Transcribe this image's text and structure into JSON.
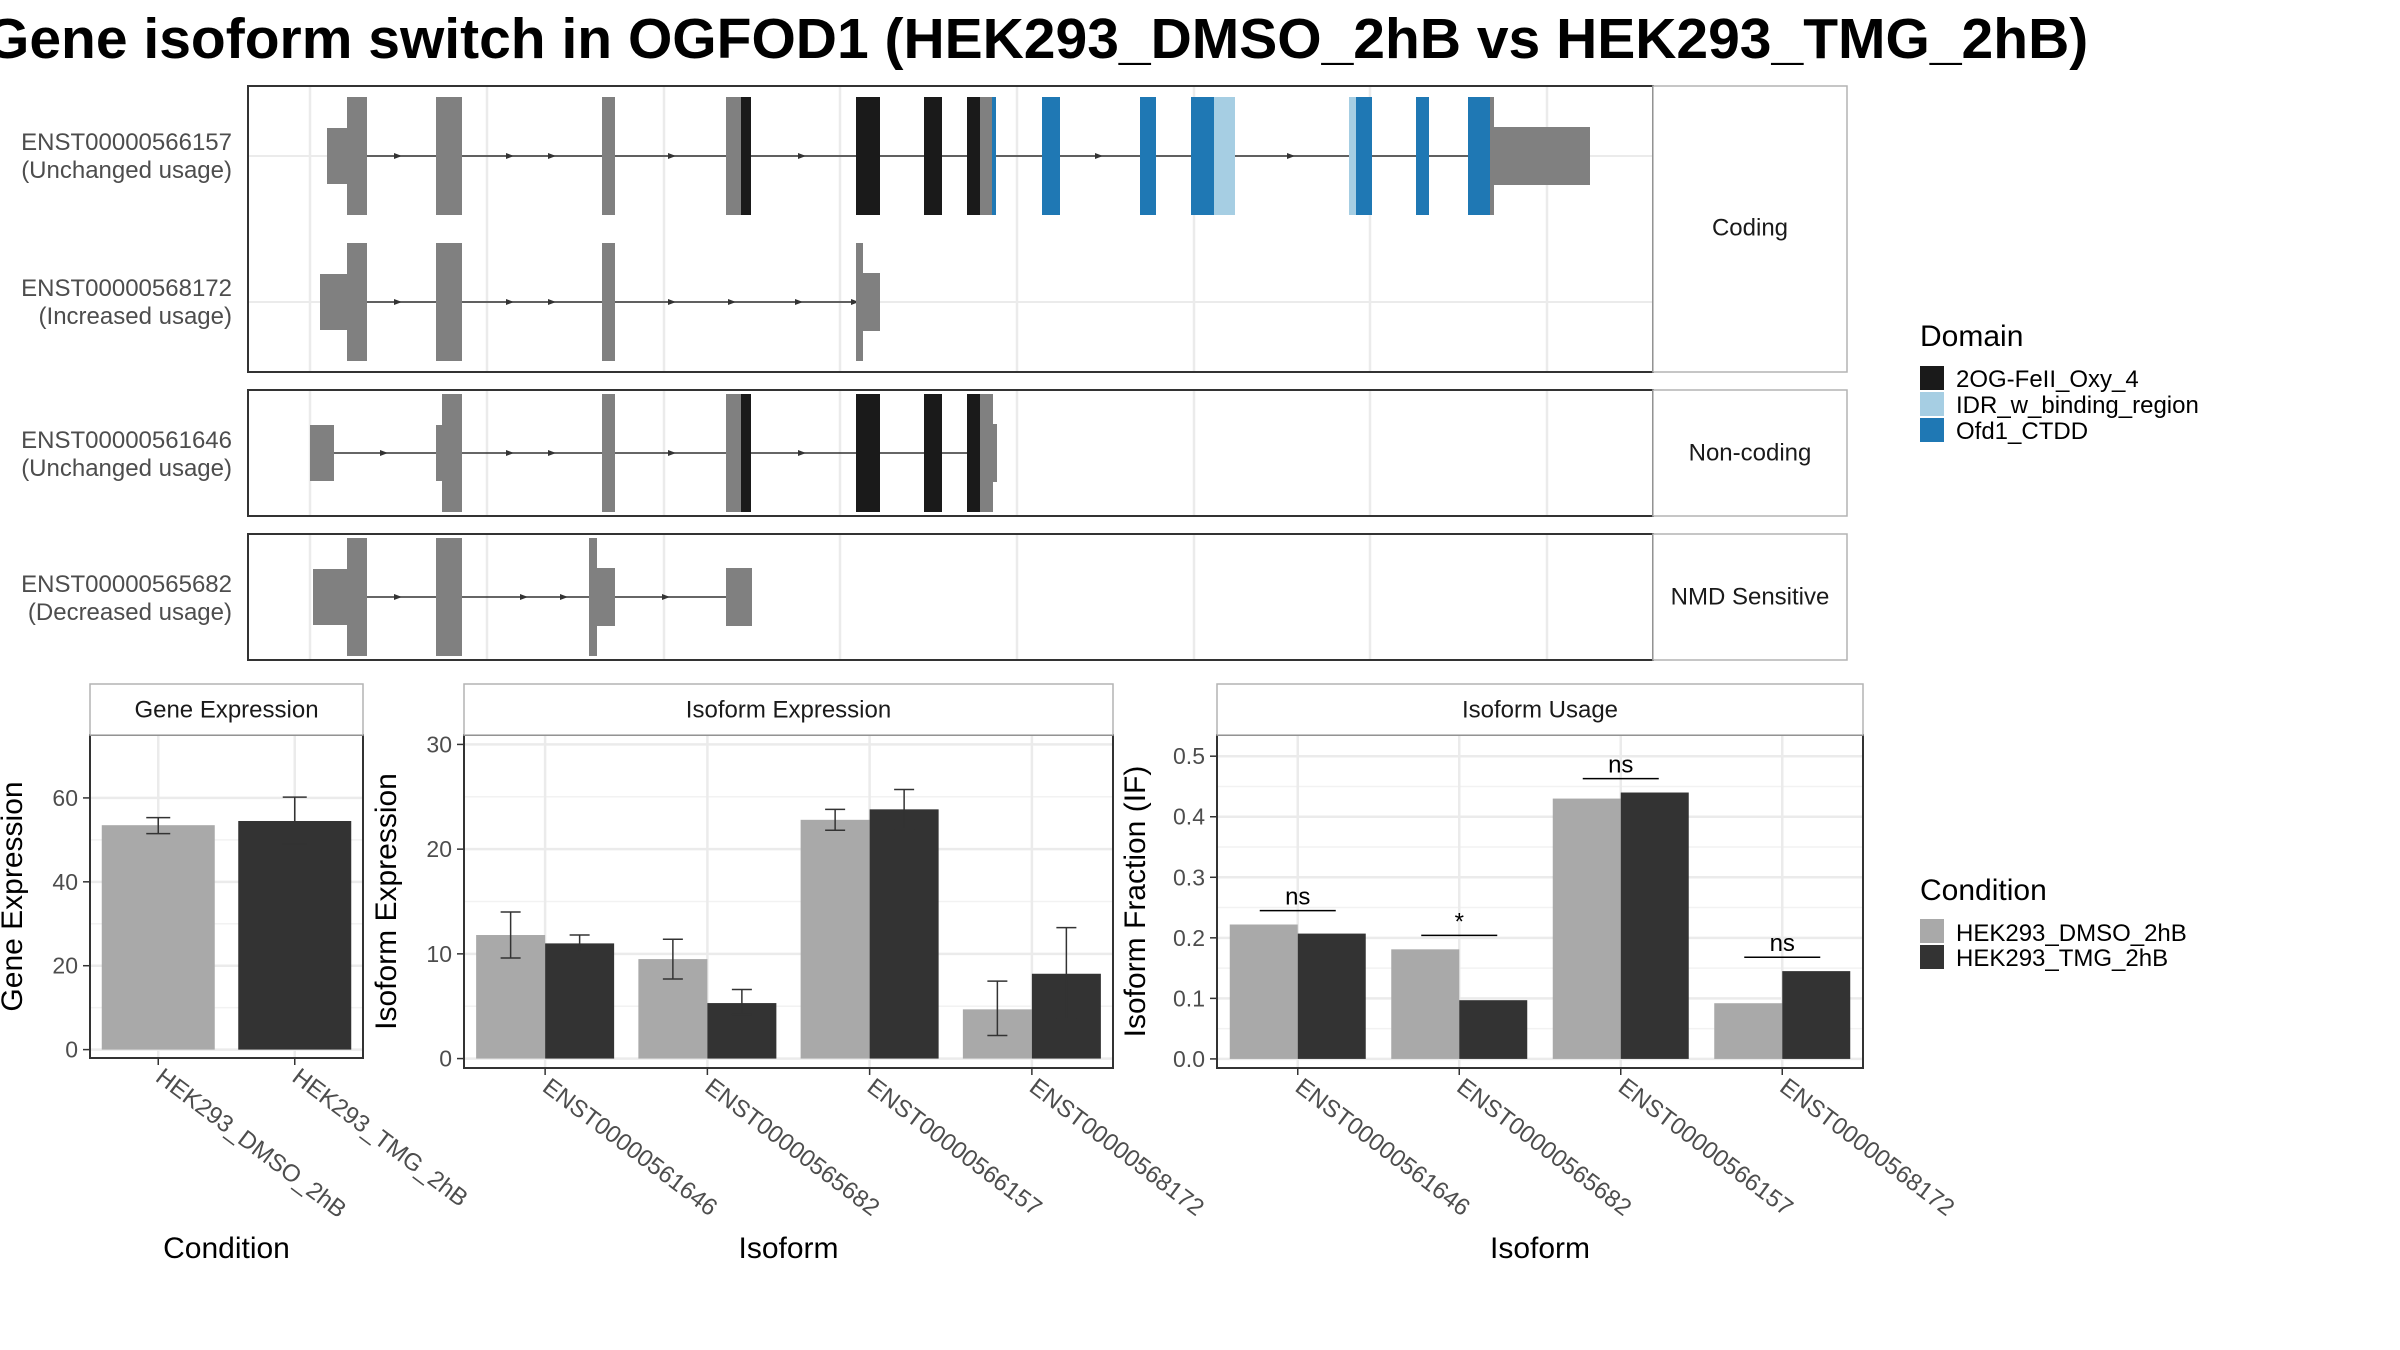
{
  "title": "Gene isoform switch in OGFOD1 (HEK293_DMSO_2hB vs HEK293_TMG_2hB)",
  "colors": {
    "gray_exon": "#808080",
    "dmso": "#A9A9A9",
    "tmg": "#333333",
    "domain_oxy": "#1a1a1a",
    "domain_idr": "#a6cee3",
    "domain_ctdd": "#1f78b4"
  },
  "structure": {
    "panels": [
      {
        "label": "Coding",
        "transcripts": [
          "t566157",
          "t568172"
        ]
      },
      {
        "label": "Non-coding",
        "transcripts": [
          "t561646"
        ]
      },
      {
        "label": "NMD Sensitive",
        "transcripts": [
          "t565682"
        ]
      }
    ],
    "transcripts": {
      "t566157": {
        "id": "ENST00000566157",
        "usage": "(Unchanged usage)"
      },
      "t568172": {
        "id": "ENST00000568172",
        "usage": "(Increased usage)"
      },
      "t561646": {
        "id": "ENST00000561646",
        "usage": "(Unchanged usage)"
      },
      "t565682": {
        "id": "ENST00000565682",
        "usage": "(Decreased usage)"
      }
    },
    "domain_legend": {
      "title": "Domain",
      "items": [
        {
          "label": "2OG-FeII_Oxy_4",
          "color": "#1a1a1a"
        },
        {
          "label": "IDR_w_binding_region",
          "color": "#a6cee3"
        },
        {
          "label": "Ofd1_CTDD",
          "color": "#1f78b4"
        }
      ]
    }
  },
  "condition_legend": {
    "title": "Condition",
    "items": [
      {
        "label": "HEK293_DMSO_2hB",
        "color": "#A9A9A9"
      },
      {
        "label": "HEK293_TMG_2hB",
        "color": "#333333"
      }
    ]
  },
  "chart_data": [
    {
      "type": "bar",
      "title": "Gene Expression",
      "xlabel": "Condition",
      "ylabel": "Gene Expression",
      "ylim": [
        -2,
        75
      ],
      "yticks": [
        0,
        20,
        40,
        60
      ],
      "categories": [
        "HEK293_DMSO_2hB",
        "HEK293_TMG_2hB"
      ],
      "values": [
        53.5,
        54.5
      ],
      "error_low": [
        51.5,
        49.0
      ],
      "error_high": [
        55.3,
        60.2
      ],
      "colors": [
        "#A9A9A9",
        "#333333"
      ]
    },
    {
      "type": "bar",
      "title": "Isoform Expression",
      "xlabel": "Isoform",
      "ylabel": "Isoform Expression",
      "ylim": [
        -0.9,
        30.9
      ],
      "yticks": [
        0,
        10,
        20,
        30
      ],
      "categories": [
        "ENST00000561646",
        "ENST00000565682",
        "ENST00000566157",
        "ENST00000568172"
      ],
      "series": [
        {
          "name": "HEK293_DMSO_2hB",
          "values": [
            11.8,
            9.5,
            22.8,
            4.7
          ],
          "error_low": [
            9.6,
            7.6,
            21.8,
            2.2
          ],
          "error_high": [
            14.0,
            11.4,
            23.8,
            7.4
          ]
        },
        {
          "name": "HEK293_TMG_2hB",
          "values": [
            11.0,
            5.3,
            23.8,
            8.1
          ],
          "error_low": [
            10.2,
            4.2,
            21.9,
            3.8
          ],
          "error_high": [
            11.8,
            6.6,
            25.7,
            12.5
          ]
        }
      ]
    },
    {
      "type": "bar",
      "title": "Isoform Usage",
      "xlabel": "Isoform",
      "ylabel": "Isoform Fraction (IF)",
      "ylim": [
        -0.015,
        0.535
      ],
      "yticks": [
        0.0,
        0.1,
        0.2,
        0.3,
        0.4,
        0.5
      ],
      "categories": [
        "ENST00000561646",
        "ENST00000565682",
        "ENST00000566157",
        "ENST00000568172"
      ],
      "series": [
        {
          "name": "HEK293_DMSO_2hB",
          "values": [
            0.222,
            0.181,
            0.43,
            0.092
          ]
        },
        {
          "name": "HEK293_TMG_2hB",
          "values": [
            0.207,
            0.097,
            0.44,
            0.145
          ]
        }
      ],
      "significance": [
        {
          "category": "ENST00000561646",
          "label": "ns",
          "y": 0.245
        },
        {
          "category": "ENST00000565682",
          "label": "*",
          "y": 0.204
        },
        {
          "category": "ENST00000566157",
          "label": "ns",
          "y": 0.463
        },
        {
          "category": "ENST00000568172",
          "label": "ns",
          "y": 0.168
        }
      ]
    }
  ]
}
